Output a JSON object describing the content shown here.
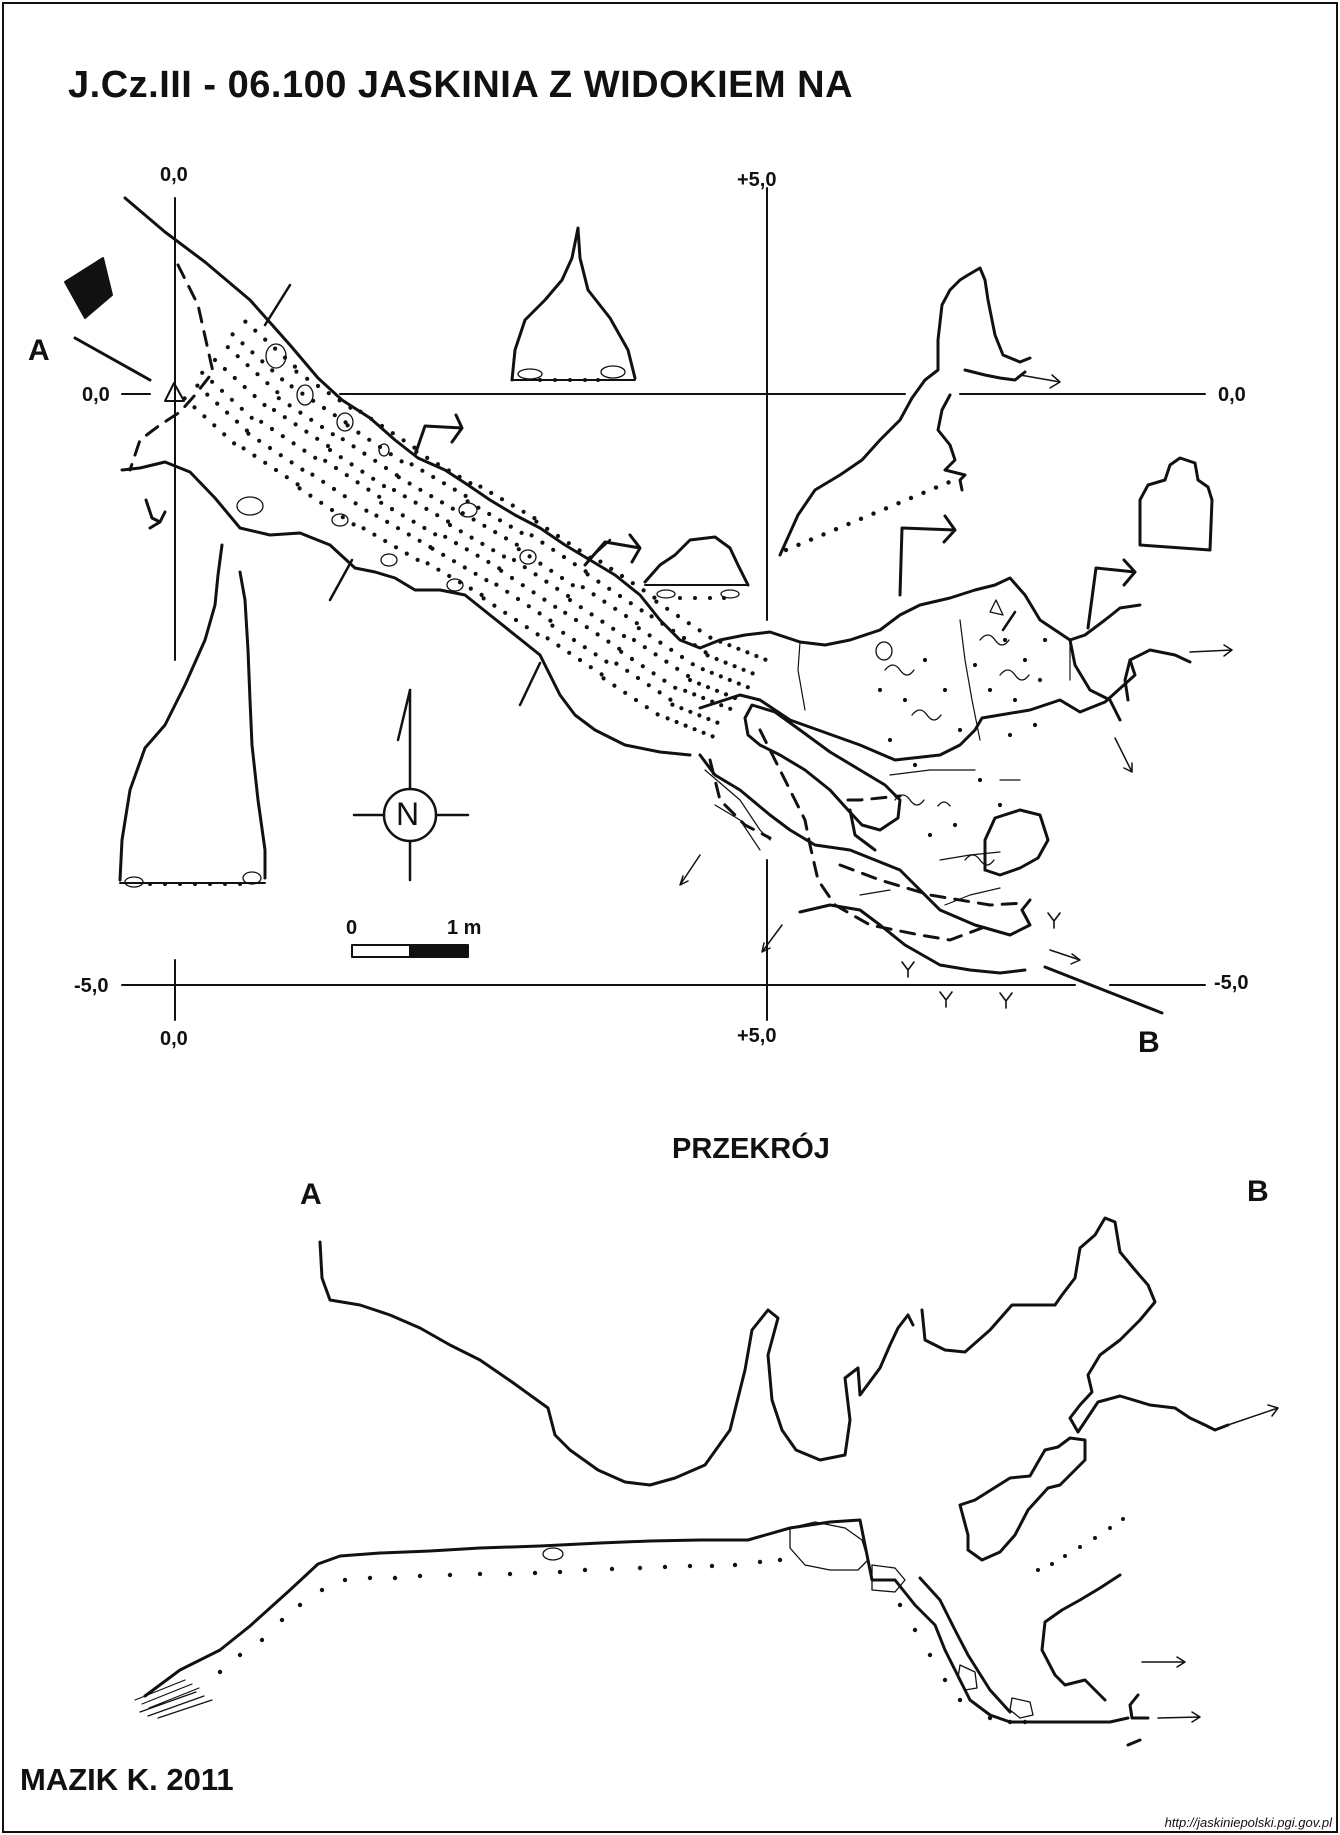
{
  "title": "J.Cz.III - 06.100  JASKINIA Z WIDOKIEM NA",
  "grid_labels": {
    "x_left_top": "0,0",
    "x_mid_top": "+5,0",
    "x_left_bottom": "0,0",
    "x_mid_bottom": "+5,0",
    "y_left_top": "0,0",
    "y_right_top": "0,0",
    "y_left_bottom": "-5,0",
    "y_right_bottom": "-5,0"
  },
  "section_points": {
    "a": "A",
    "b": "B"
  },
  "north_label": "N",
  "scale": {
    "zero": "0",
    "one": "1 m"
  },
  "cross_section_title": "PRZEKRÓJ",
  "cross_section_points": {
    "a": "A",
    "b": "B"
  },
  "author": "MAZIK K. 2011",
  "source_url": "http://jaskiniepolski.pgi.gov.pl"
}
